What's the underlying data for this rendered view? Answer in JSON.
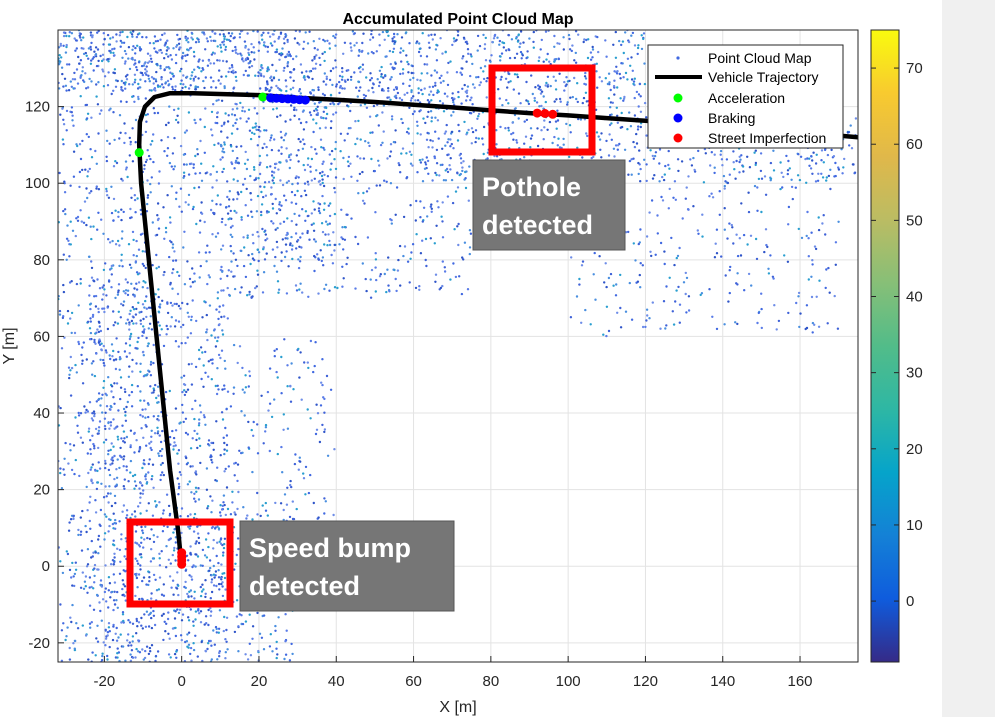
{
  "chart_data": {
    "type": "scatter",
    "title": "Accumulated Point Cloud Map",
    "xlabel": "X [m]",
    "ylabel": "Y [m]",
    "xlim": [
      -32,
      175
    ],
    "ylim": [
      -25,
      140
    ],
    "xticks": [
      -20,
      0,
      20,
      40,
      60,
      80,
      100,
      120,
      140,
      160
    ],
    "yticks": [
      -20,
      0,
      20,
      40,
      60,
      80,
      100,
      120
    ],
    "grid": true,
    "legend_position": "top-right",
    "colorbar": {
      "min": -8,
      "max": 75,
      "ticks": [
        0,
        10,
        20,
        30,
        40,
        50,
        60,
        70
      ],
      "colormap": "parula"
    },
    "series": [
      {
        "name": "Point Cloud Map",
        "kind": "points",
        "color": "#4169e1"
      },
      {
        "name": "Vehicle Trajectory",
        "kind": "line",
        "color": "#000000",
        "x": [
          0,
          -1,
          -3,
          -5,
          -7,
          -9,
          -10.5,
          -11,
          -10.8,
          -9.5,
          -7,
          -3,
          3,
          12,
          20,
          30,
          40,
          50,
          60,
          70,
          80,
          90,
          100,
          110,
          120,
          130,
          140,
          150,
          160,
          175
        ],
        "y": [
          0,
          10,
          25,
          45,
          65,
          85,
          100,
          110,
          116,
          120,
          122.5,
          123.5,
          123.5,
          123.2,
          123,
          122.3,
          121.8,
          121.2,
          120.5,
          119.8,
          119,
          118.3,
          117.7,
          117,
          116.3,
          115.5,
          114.8,
          114,
          113.3,
          112
        ]
      },
      {
        "name": "Acceleration",
        "kind": "markers",
        "color": "#00ff00",
        "x": [
          -11,
          21
        ],
        "y": [
          108,
          122.5
        ]
      },
      {
        "name": "Braking",
        "kind": "markers",
        "color": "#0000ff",
        "x": [
          23,
          24.5,
          26,
          27.5,
          29,
          30.5,
          32
        ],
        "y": [
          122.3,
          122.2,
          122.1,
          122,
          121.9,
          121.8,
          121.7
        ]
      },
      {
        "name": "Street Imperfection",
        "kind": "markers",
        "color": "#ff0000",
        "x": [
          0,
          0,
          0,
          0,
          92,
          94,
          96
        ],
        "y": [
          0.5,
          1.5,
          2.5,
          3.5,
          118.3,
          118.2,
          118
        ]
      }
    ],
    "annotations": [
      {
        "lines": [
          "Pothole",
          "detected"
        ]
      },
      {
        "lines": [
          "Speed bump",
          "detected"
        ]
      }
    ]
  }
}
